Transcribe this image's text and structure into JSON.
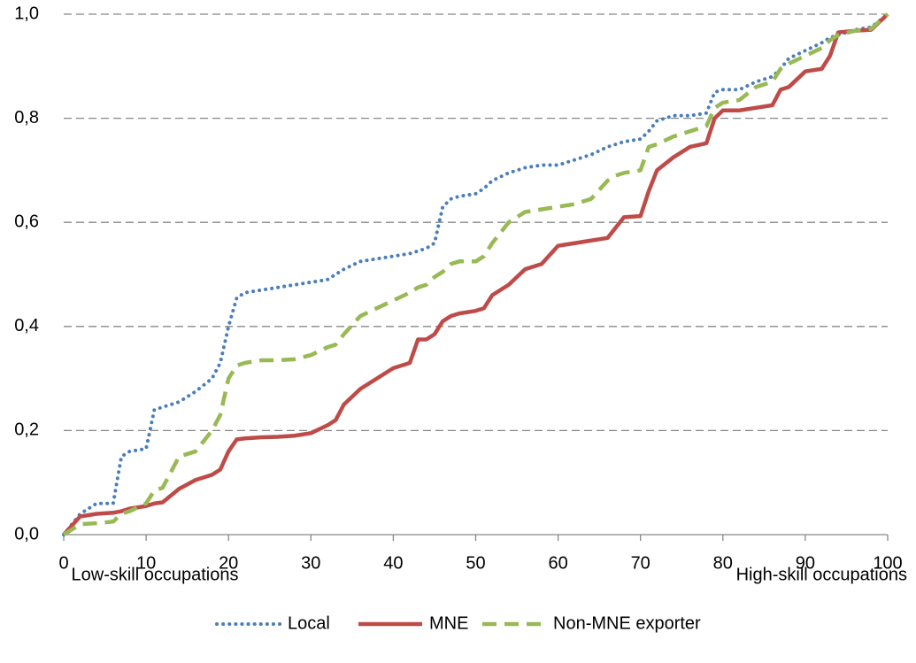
{
  "chart_data": {
    "type": "line",
    "annotations": [
      "Low-skill occupations",
      "High-skill occupations"
    ],
    "x": [
      0,
      2,
      4,
      6,
      7,
      8,
      10,
      11,
      12,
      14,
      16,
      18,
      19,
      20,
      21,
      22,
      24,
      26,
      28,
      30,
      32,
      33,
      34,
      36,
      38,
      40,
      42,
      43,
      44,
      45,
      46,
      47,
      48,
      50,
      51,
      52,
      54,
      56,
      58,
      60,
      62,
      64,
      66,
      67,
      68,
      70,
      71,
      72,
      74,
      76,
      78,
      79,
      80,
      82,
      84,
      86,
      87,
      88,
      90,
      92,
      93,
      94,
      96,
      98,
      100
    ],
    "series": [
      {
        "name": "Local",
        "color": "#4a7ebb",
        "dash": "dotted",
        "values": [
          0,
          0.04,
          0.06,
          0.06,
          0.15,
          0.16,
          0.165,
          0.24,
          0.245,
          0.255,
          0.275,
          0.3,
          0.33,
          0.4,
          0.455,
          0.465,
          0.47,
          0.475,
          0.48,
          0.485,
          0.49,
          0.5,
          0.51,
          0.525,
          0.53,
          0.535,
          0.54,
          0.545,
          0.55,
          0.56,
          0.63,
          0.645,
          0.65,
          0.655,
          0.665,
          0.68,
          0.695,
          0.705,
          0.71,
          0.71,
          0.72,
          0.73,
          0.745,
          0.75,
          0.755,
          0.76,
          0.775,
          0.795,
          0.805,
          0.805,
          0.81,
          0.85,
          0.855,
          0.855,
          0.87,
          0.88,
          0.895,
          0.915,
          0.93,
          0.945,
          0.955,
          0.96,
          0.97,
          0.975,
          1.0
        ]
      },
      {
        "name": "MNE",
        "color": "#be4b48",
        "dash": "solid",
        "values": [
          0,
          0.035,
          0.04,
          0.042,
          0.045,
          0.05,
          0.055,
          0.06,
          0.062,
          0.088,
          0.105,
          0.115,
          0.125,
          0.16,
          0.183,
          0.185,
          0.187,
          0.188,
          0.19,
          0.195,
          0.21,
          0.22,
          0.25,
          0.28,
          0.3,
          0.32,
          0.33,
          0.375,
          0.375,
          0.385,
          0.41,
          0.42,
          0.425,
          0.43,
          0.435,
          0.46,
          0.48,
          0.51,
          0.52,
          0.555,
          0.56,
          0.565,
          0.57,
          0.59,
          0.61,
          0.612,
          0.66,
          0.7,
          0.725,
          0.745,
          0.752,
          0.8,
          0.815,
          0.815,
          0.82,
          0.825,
          0.855,
          0.86,
          0.89,
          0.895,
          0.92,
          0.965,
          0.968,
          0.97,
          1.0
        ]
      },
      {
        "name": "Non-MNE exporter",
        "color": "#98b954",
        "dash": "dashed",
        "values": [
          0,
          0.02,
          0.022,
          0.025,
          0.04,
          0.045,
          0.06,
          0.085,
          0.09,
          0.15,
          0.16,
          0.2,
          0.23,
          0.3,
          0.325,
          0.33,
          0.335,
          0.335,
          0.337,
          0.345,
          0.36,
          0.365,
          0.385,
          0.42,
          0.435,
          0.45,
          0.465,
          0.475,
          0.48,
          0.495,
          0.505,
          0.52,
          0.525,
          0.525,
          0.535,
          0.56,
          0.6,
          0.62,
          0.625,
          0.63,
          0.635,
          0.645,
          0.68,
          0.69,
          0.695,
          0.7,
          0.745,
          0.75,
          0.765,
          0.775,
          0.785,
          0.82,
          0.83,
          0.835,
          0.86,
          0.87,
          0.895,
          0.905,
          0.92,
          0.935,
          0.95,
          0.96,
          0.968,
          0.972,
          1.0
        ]
      }
    ],
    "xlim": [
      0,
      100
    ],
    "xticks": [
      0,
      10,
      20,
      30,
      40,
      50,
      60,
      70,
      80,
      90,
      100
    ],
    "ylim": [
      0,
      1
    ],
    "yticks": [
      {
        "value": 0,
        "label": "0,0"
      },
      {
        "value": 0.2,
        "label": "0,2"
      },
      {
        "value": 0.4,
        "label": "0,4"
      },
      {
        "value": 0.6,
        "label": "0,6"
      },
      {
        "value": 0.8,
        "label": "0,8"
      },
      {
        "value": 1,
        "label": "1,0"
      }
    ],
    "grid": true,
    "legend": "bottom"
  }
}
